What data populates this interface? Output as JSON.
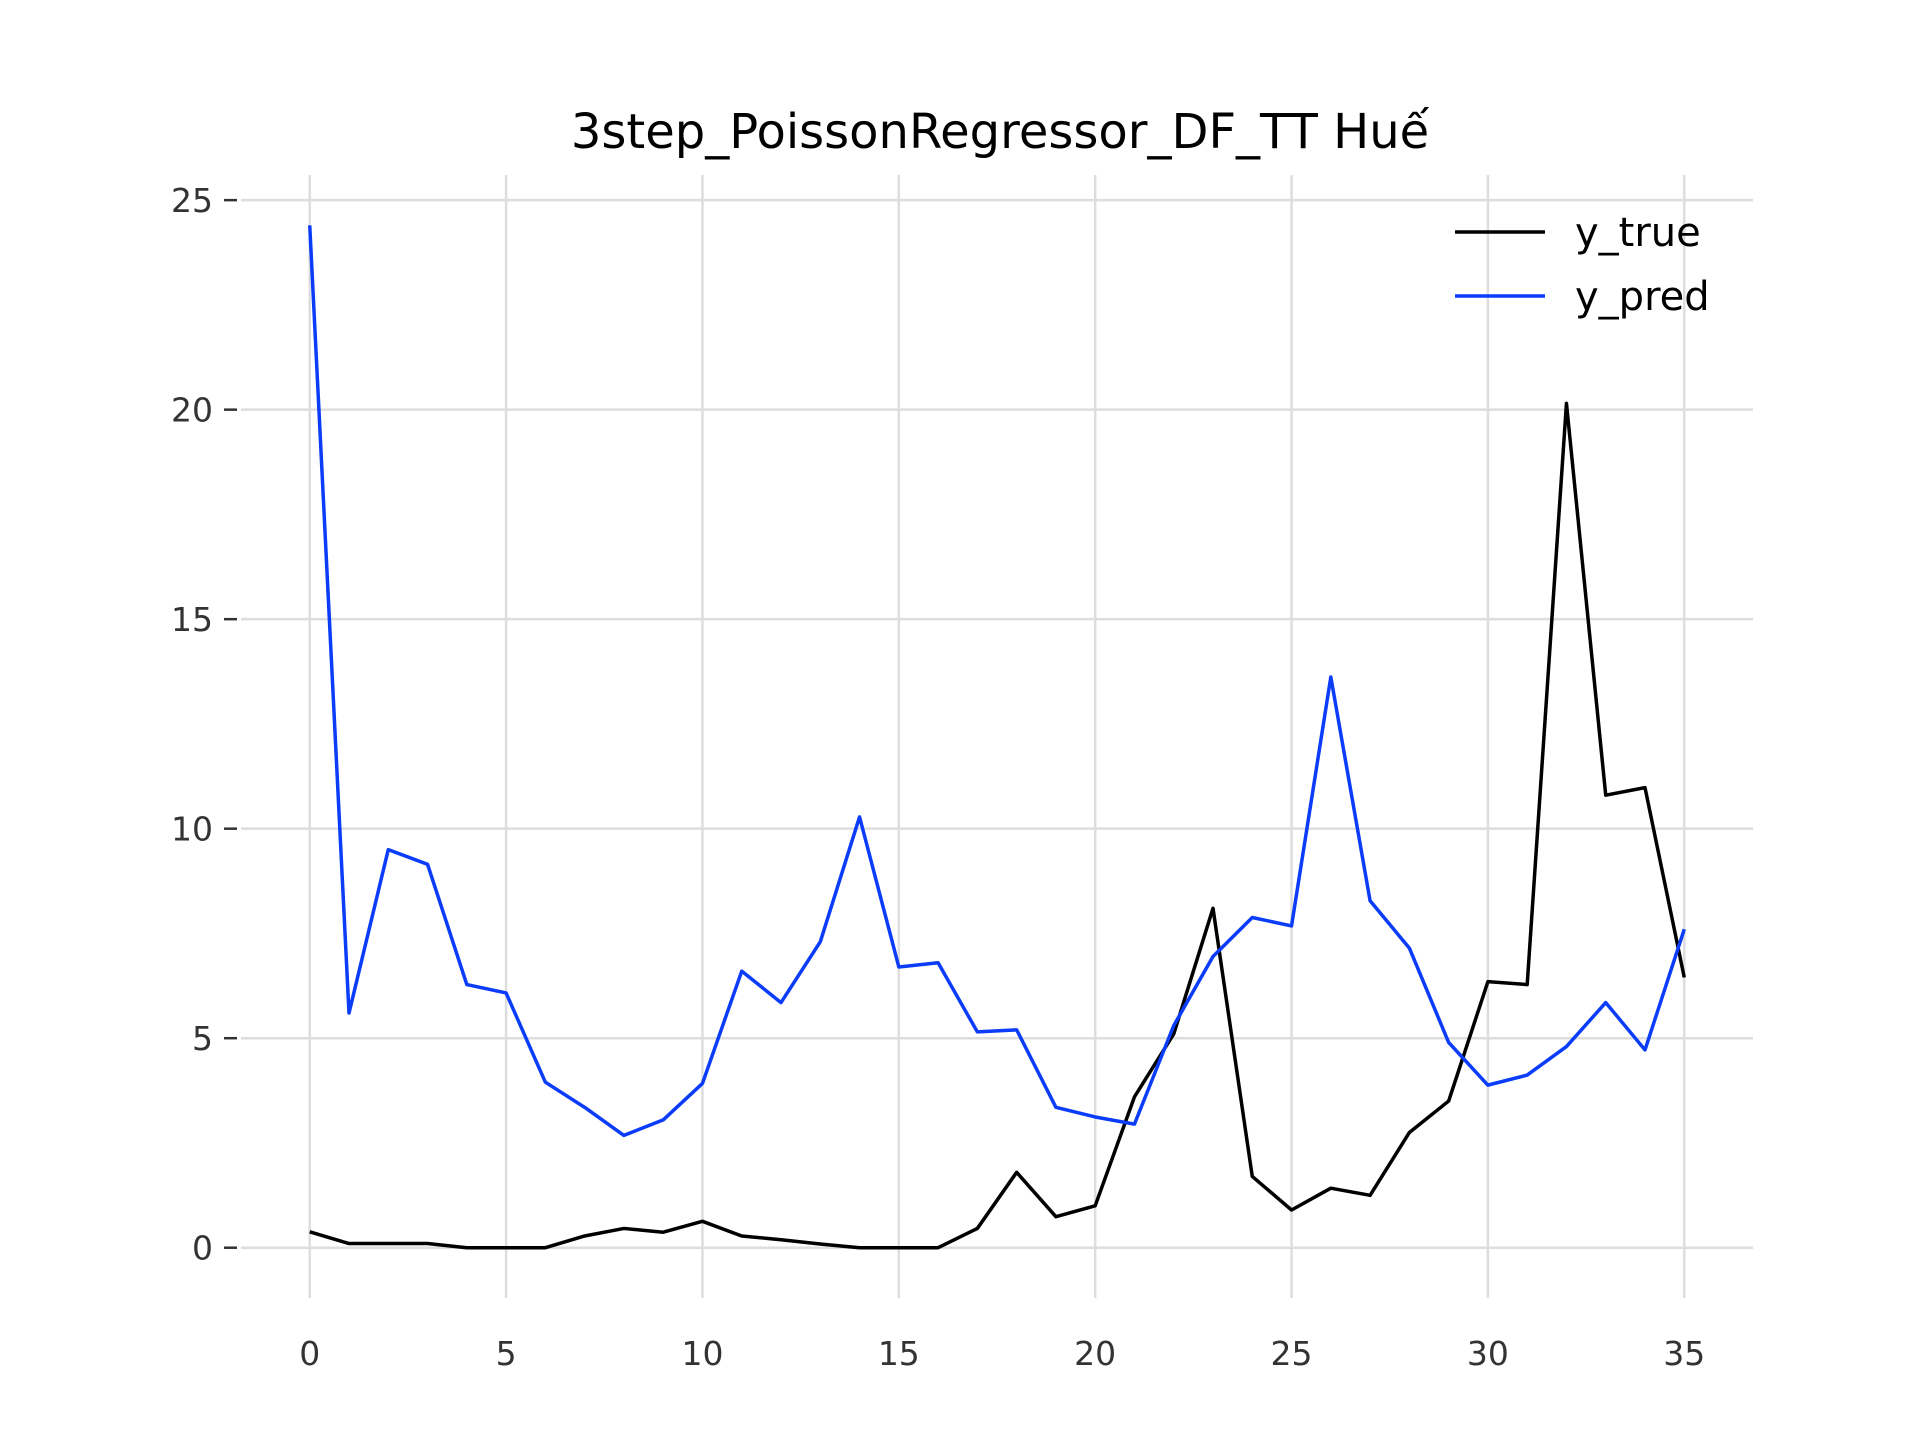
{
  "chart_data": {
    "type": "line",
    "title": "3step_PoissonRegressor_DF_TT Huế",
    "xlabel": "",
    "ylabel": "",
    "x": [
      0,
      1,
      2,
      3,
      4,
      5,
      6,
      7,
      8,
      9,
      10,
      11,
      12,
      13,
      14,
      15,
      16,
      17,
      18,
      19,
      20,
      21,
      22,
      23,
      24,
      25,
      26,
      27,
      28,
      29,
      30,
      31,
      32,
      33,
      34,
      35
    ],
    "xlim": [
      -1.75,
      36.75
    ],
    "ylim": [
      -1.2,
      25.6
    ],
    "xticks": [
      0,
      5,
      10,
      15,
      20,
      25,
      30,
      35
    ],
    "yticks": [
      0,
      5,
      10,
      15,
      20,
      25
    ],
    "grid": true,
    "legend": "top-right",
    "series": [
      {
        "name": "y_true",
        "color": "#000000",
        "values": [
          0.38,
          0.1,
          0.1,
          0.1,
          0.0,
          0.0,
          0.0,
          0.28,
          0.46,
          0.37,
          0.63,
          0.28,
          0.19,
          0.09,
          0.0,
          0.0,
          0.0,
          0.46,
          1.8,
          0.74,
          1.0,
          3.6,
          5.1,
          8.1,
          1.7,
          0.9,
          1.42,
          1.25,
          2.75,
          3.5,
          6.35,
          6.28,
          20.15,
          10.8,
          10.98,
          6.45
        ]
      },
      {
        "name": "y_pred",
        "color": "#0a3cfa",
        "values": [
          24.4,
          5.6,
          9.5,
          9.15,
          6.28,
          6.08,
          3.95,
          3.35,
          2.68,
          3.05,
          3.92,
          6.6,
          5.85,
          7.3,
          10.28,
          6.7,
          6.8,
          5.15,
          5.2,
          3.35,
          3.12,
          2.95,
          5.3,
          6.95,
          7.88,
          7.68,
          13.62,
          8.28,
          7.15,
          4.9,
          3.88,
          4.12,
          4.8,
          5.85,
          4.72,
          7.6
        ]
      }
    ]
  }
}
